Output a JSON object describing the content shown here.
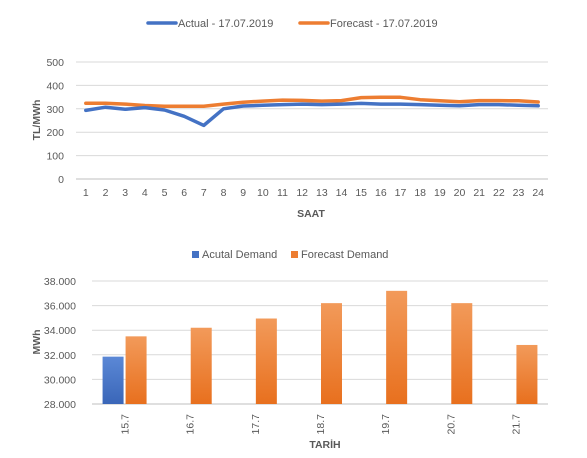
{
  "chart_data": [
    {
      "type": "line",
      "title": "",
      "xlabel": "SAAT",
      "ylabel": "TL/MWh",
      "ylim": [
        0,
        500
      ],
      "yticks": [
        "0",
        "100",
        "200",
        "300",
        "400",
        "500"
      ],
      "grid": true,
      "legend_position": "top",
      "categories": [
        "1",
        "2",
        "3",
        "4",
        "5",
        "6",
        "7",
        "8",
        "9",
        "10",
        "11",
        "12",
        "13",
        "14",
        "15",
        "16",
        "17",
        "18",
        "19",
        "20",
        "21",
        "22",
        "23",
        "24"
      ],
      "series": [
        {
          "name": "Actual - 17.07.2019",
          "color": "#4472C4",
          "values": [
            293,
            307,
            298,
            305,
            295,
            268,
            229,
            300,
            312,
            315,
            318,
            320,
            318,
            320,
            323,
            320,
            320,
            318,
            315,
            313,
            318,
            318,
            315,
            313
          ]
        },
        {
          "name": "Forecast - 17.07.2019",
          "color": "#ED7D31",
          "values": [
            324,
            324,
            320,
            314,
            311,
            311,
            311,
            320,
            328,
            333,
            337,
            336,
            333,
            335,
            348,
            349,
            349,
            339,
            334,
            330,
            335,
            335,
            334,
            329
          ]
        }
      ]
    },
    {
      "type": "bar",
      "title": "",
      "xlabel": "TARİH",
      "ylabel": "MWh",
      "ylim": [
        28000,
        38000
      ],
      "yticks": [
        "28.000",
        "30.000",
        "32.000",
        "34.000",
        "36.000",
        "38.000"
      ],
      "grid": true,
      "legend_position": "top",
      "categories": [
        "15.7",
        "16.7",
        "17.7",
        "18.7",
        "19.7",
        "20.7",
        "21.7"
      ],
      "series": [
        {
          "name": "Acutal Demand",
          "color": "#4472C4",
          "values": [
            31850,
            null,
            null,
            null,
            null,
            null,
            null
          ]
        },
        {
          "name": "Forecast Demand",
          "color": "#ED7D31",
          "values": [
            33500,
            34200,
            34950,
            36200,
            37200,
            36200,
            32800
          ]
        }
      ]
    }
  ]
}
